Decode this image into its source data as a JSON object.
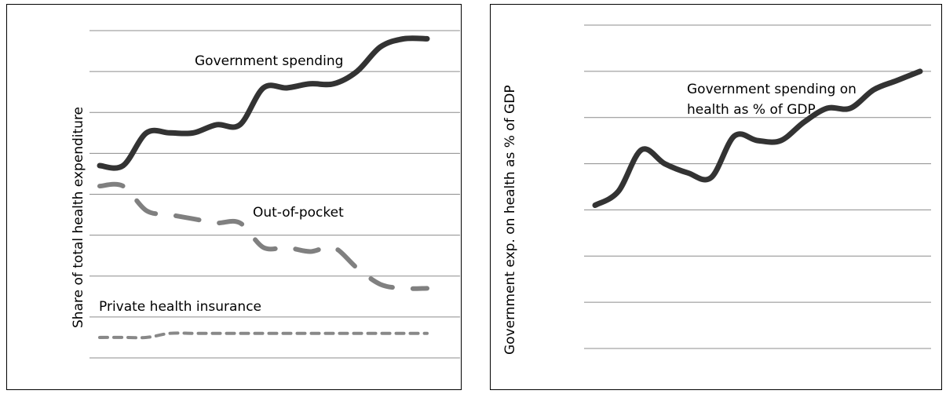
{
  "chart_data": [
    {
      "type": "line",
      "title": "",
      "xlabel": "",
      "ylabel": "Share of total health expenditure",
      "grid": true,
      "legend": "none",
      "ylim": [
        0,
        8
      ],
      "x": [
        1,
        2,
        3,
        4,
        5,
        6,
        7,
        8,
        9,
        10,
        11,
        12,
        13,
        14,
        15
      ],
      "series": [
        {
          "name": "Government spending",
          "color": "#333333",
          "style": "solid",
          "values": [
            4.7,
            4.7,
            5.5,
            5.5,
            5.5,
            5.7,
            5.7,
            6.6,
            6.6,
            6.7,
            6.7,
            7.0,
            7.6,
            7.8,
            7.8
          ]
        },
        {
          "name": "Out-of-pocket",
          "color": "#808080",
          "style": "long-dash",
          "values": [
            4.2,
            4.2,
            3.6,
            3.5,
            3.4,
            3.3,
            3.3,
            2.7,
            2.7,
            2.6,
            2.7,
            2.2,
            1.8,
            1.7,
            1.7
          ]
        },
        {
          "name": "Private health insurance",
          "color": "#888888",
          "style": "short-dash",
          "values": [
            0.5,
            0.5,
            0.5,
            0.6,
            0.6,
            0.6,
            0.6,
            0.6,
            0.6,
            0.6,
            0.6,
            0.6,
            0.6,
            0.6,
            0.6
          ]
        }
      ]
    },
    {
      "type": "line",
      "title": "",
      "xlabel": "",
      "ylabel": "Government exp. on health as % of GDP",
      "grid": true,
      "legend": "none",
      "ylim": [
        0,
        7
      ],
      "x": [
        1,
        2,
        3,
        4,
        5,
        6,
        7,
        8,
        9,
        10,
        11,
        12,
        13,
        14,
        15
      ],
      "series": [
        {
          "name": "Government spending on health as % of GDP",
          "color": "#333333",
          "style": "solid",
          "values": [
            3.1,
            3.4,
            4.3,
            4.0,
            3.8,
            3.7,
            4.6,
            4.5,
            4.5,
            4.9,
            5.2,
            5.2,
            5.6,
            5.8,
            6.0
          ]
        }
      ]
    }
  ],
  "labels": {
    "left_gov": "Government spending",
    "left_oop": "Out-of-pocket",
    "left_phi": "Private health insurance",
    "right_line1": "Government spending on",
    "right_line2": "health as % of GDP"
  }
}
